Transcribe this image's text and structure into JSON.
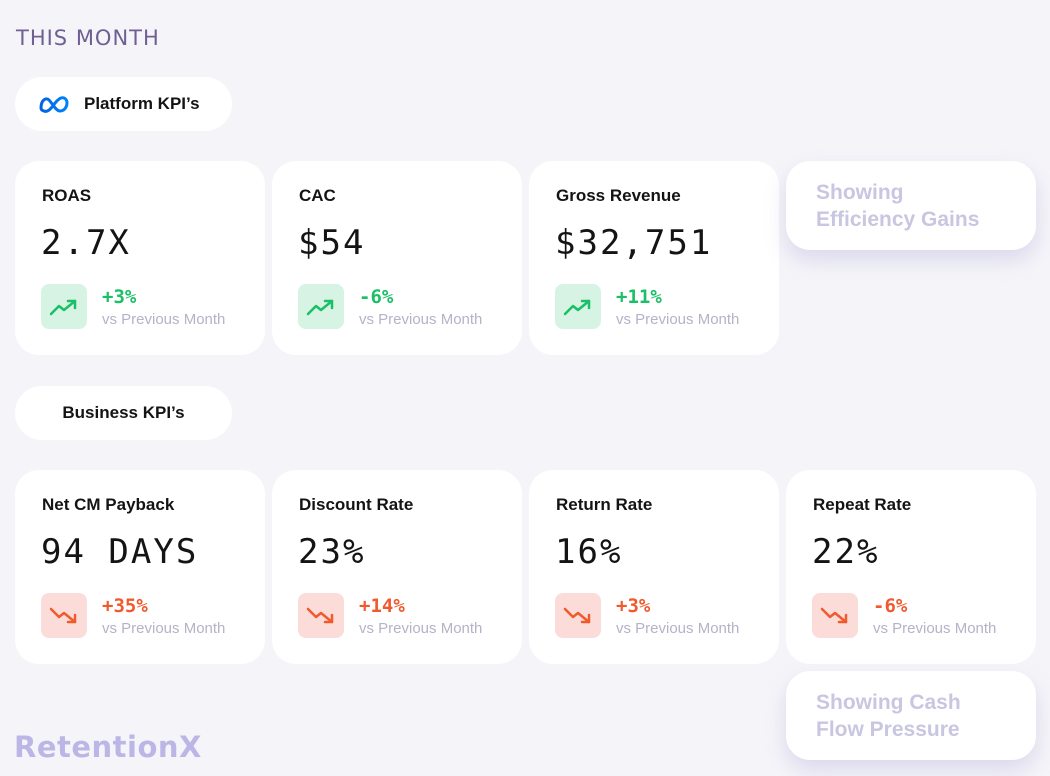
{
  "header": {
    "title": "THIS MONTH"
  },
  "platform_section": {
    "label": "Platform KPI’s",
    "icon": "meta-logo-icon"
  },
  "business_section": {
    "label": "Business KPI’s"
  },
  "platform_cards": [
    {
      "label": "ROAS",
      "value": "2.7X",
      "change": "+3%",
      "direction": "up",
      "sub": "vs Previous Month"
    },
    {
      "label": "CAC",
      "value": "$54",
      "change": "-6%",
      "direction": "up",
      "sub": "vs Previous Month"
    },
    {
      "label": "Gross Revenue",
      "value": "$32,751",
      "change": "+11%",
      "direction": "up",
      "sub": "vs Previous Month"
    }
  ],
  "business_cards": [
    {
      "label": "Net CM Payback",
      "value": "94 DAYS",
      "change": "+35%",
      "direction": "down",
      "sub": "vs Previous Month"
    },
    {
      "label": "Discount Rate",
      "value": "23%",
      "change": "+14%",
      "direction": "down",
      "sub": "vs Previous Month"
    },
    {
      "label": "Return Rate",
      "value": "16%",
      "change": "+3%",
      "direction": "down",
      "sub": "vs Previous Month"
    },
    {
      "label": "Repeat Rate",
      "value": "22%",
      "change": "-6%",
      "direction": "down",
      "sub": "vs Previous Month"
    }
  ],
  "callouts": {
    "efficiency": {
      "line1": "Showing",
      "line2": "Efficiency Gains"
    },
    "cash_flow": {
      "line1": "Showing Cash",
      "line2": "Flow Pressure"
    }
  },
  "brand": {
    "logo_text": "RetentionX"
  },
  "colors": {
    "positive": "#19c066",
    "negative": "#f05a2e",
    "positive_bg": "#d6f3e3",
    "negative_bg": "#fbdcd8",
    "muted": "#b4b3c8",
    "accent": "#6f5f92"
  }
}
